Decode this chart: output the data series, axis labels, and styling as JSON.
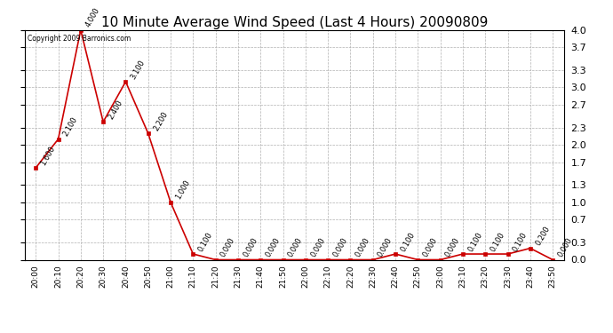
{
  "title": "10 Minute Average Wind Speed (Last 4 Hours) 20090809",
  "copyright": "Copyright 2009 Barronics.com",
  "times": [
    "20:00",
    "20:10",
    "20:20",
    "20:30",
    "20:40",
    "20:50",
    "21:00",
    "21:10",
    "21:20",
    "21:30",
    "21:40",
    "21:50",
    "22:00",
    "22:10",
    "22:20",
    "22:30",
    "22:40",
    "22:50",
    "23:00",
    "23:10",
    "23:20",
    "23:30",
    "23:40",
    "23:50"
  ],
  "values": [
    1.6,
    2.1,
    4.0,
    2.4,
    3.1,
    2.2,
    1.0,
    0.1,
    0.0,
    0.0,
    0.0,
    0.0,
    0.0,
    0.0,
    0.0,
    0.0,
    0.1,
    0.0,
    0.0,
    0.1,
    0.1,
    0.1,
    0.2,
    0.0
  ],
  "line_color": "#cc0000",
  "marker_color": "#cc0000",
  "bg_color": "#ffffff",
  "grid_color": "#b0b0b0",
  "yticks": [
    0.0,
    0.3,
    0.7,
    1.0,
    1.3,
    1.7,
    2.0,
    2.3,
    2.7,
    3.0,
    3.3,
    3.7,
    4.0
  ],
  "ylim": [
    0.0,
    4.0
  ],
  "title_fontsize": 11,
  "label_fontsize": 6.5,
  "annotation_fontsize": 6,
  "right_ytick_fontsize": 8
}
